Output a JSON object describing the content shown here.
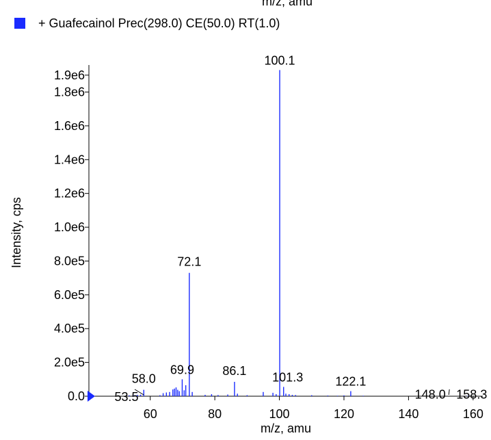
{
  "chart_data": {
    "type": "bar",
    "top_cut_text": "m/z, amu",
    "legend": {
      "entries": [
        {
          "label": "+ Guafecainol Prec(298.0) CE(50.0) RT(1.0)",
          "color": "#1a2bff"
        }
      ],
      "placement": "top-left"
    },
    "xlabel": "m/z, amu",
    "ylabel": "Intensity, cps",
    "xlim": [
      41,
      163
    ],
    "ylim": [
      0,
      1960000
    ],
    "x_ticks": [
      {
        "value": 60,
        "label": "60"
      },
      {
        "value": 80,
        "label": "80"
      },
      {
        "value": 100,
        "label": "100"
      },
      {
        "value": 120,
        "label": "120"
      },
      {
        "value": 140,
        "label": "140"
      },
      {
        "value": 160,
        "label": "160"
      }
    ],
    "y_ticks": [
      {
        "value": 0,
        "label": "0.0"
      },
      {
        "value": 200000,
        "label": "2.0e5"
      },
      {
        "value": 400000,
        "label": "4.0e5"
      },
      {
        "value": 600000,
        "label": "6.0e5"
      },
      {
        "value": 800000,
        "label": "8.0e5"
      },
      {
        "value": 1000000,
        "label": "1.0e6"
      },
      {
        "value": 1200000,
        "label": "1.2e6"
      },
      {
        "value": 1400000,
        "label": "1.4e6"
      },
      {
        "value": 1600000,
        "label": "1.6e6"
      },
      {
        "value": 1800000,
        "label": "1.8e6"
      },
      {
        "value": 1900000,
        "label": "1.9e6"
      }
    ],
    "series": [
      {
        "color": "#1a2bff",
        "x": [
          53.5,
          55.0,
          56.0,
          57.0,
          58.0,
          63.0,
          64.0,
          65.0,
          66.0,
          67.0,
          67.5,
          68.0,
          68.5,
          69.0,
          69.9,
          70.5,
          71.0,
          72.1,
          73.0,
          77.0,
          79.0,
          81.0,
          84.0,
          86.1,
          87.0,
          90.0,
          95.0,
          98.0,
          99.0,
          100.1,
          101.3,
          102.0,
          103.0,
          104.0,
          105.0,
          110.0,
          115.0,
          118.0,
          120.0,
          122.1,
          126.0,
          148.0,
          158.3
        ],
        "values": [
          5000,
          6000,
          8000,
          9000,
          38000,
          6000,
          18000,
          22000,
          25000,
          40000,
          45000,
          52000,
          38000,
          30000,
          100000,
          35000,
          65000,
          730000,
          25000,
          8000,
          12000,
          7000,
          10000,
          85000,
          15000,
          6000,
          25000,
          20000,
          12000,
          1930000,
          55000,
          15000,
          12000,
          8000,
          7000,
          6000,
          4000,
          3000,
          5000,
          30000,
          3000,
          2000,
          2000
        ]
      }
    ],
    "annotations": [
      {
        "x": 100.1,
        "text": "100.1",
        "y": 1930000
      },
      {
        "x": 72.1,
        "text": "72.1",
        "y": 730000
      },
      {
        "x": 69.9,
        "text": "69.9",
        "y": 100000
      },
      {
        "x": 86.1,
        "text": "86.1",
        "y": 85000
      },
      {
        "x": 58.0,
        "text": "58.0",
        "y": 38000
      },
      {
        "x": 53.5,
        "text": "53.5",
        "y": 5000
      },
      {
        "x": 101.3,
        "text": "101.3",
        "y": 55000
      },
      {
        "x": 122.1,
        "text": "122.1",
        "y": 30000
      },
      {
        "x": 148.0,
        "text": "148.0",
        "y": 2000
      },
      {
        "x": 158.3,
        "text": "158.3",
        "y": 2000
      }
    ],
    "grid": false
  }
}
